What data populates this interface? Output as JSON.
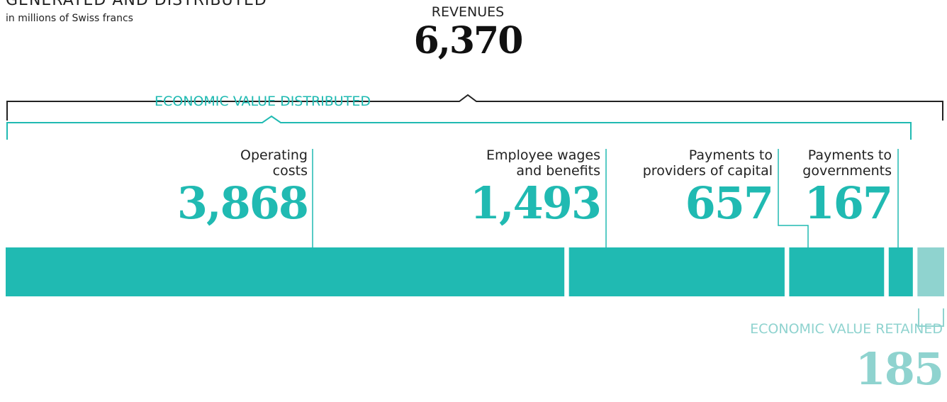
{
  "chart_data": {
    "type": "stacked-bar",
    "title": "GENERATED AND DISTRIBUTED",
    "subtitle": "in millions of Swiss francs",
    "total_label": "REVENUES",
    "total": 6370,
    "total_value_label": "6,370",
    "group_label": "ECONOMIC VALUE DISTRIBUTED",
    "categories": [
      "Operating\ncosts",
      "Employee wages\nand benefits",
      "Payments to\nproviders of capital",
      "Payments to\ngovernments",
      "ECONOMIC VALUE RETAINED"
    ],
    "values": [
      3868,
      1493,
      657,
      167,
      185
    ],
    "value_labels": [
      "3,868",
      "1,493",
      "657",
      "167",
      "185"
    ],
    "colors": [
      "#20bab2",
      "#20bab2",
      "#20bab2",
      "#20bab2",
      "#8fd3cf"
    ]
  }
}
